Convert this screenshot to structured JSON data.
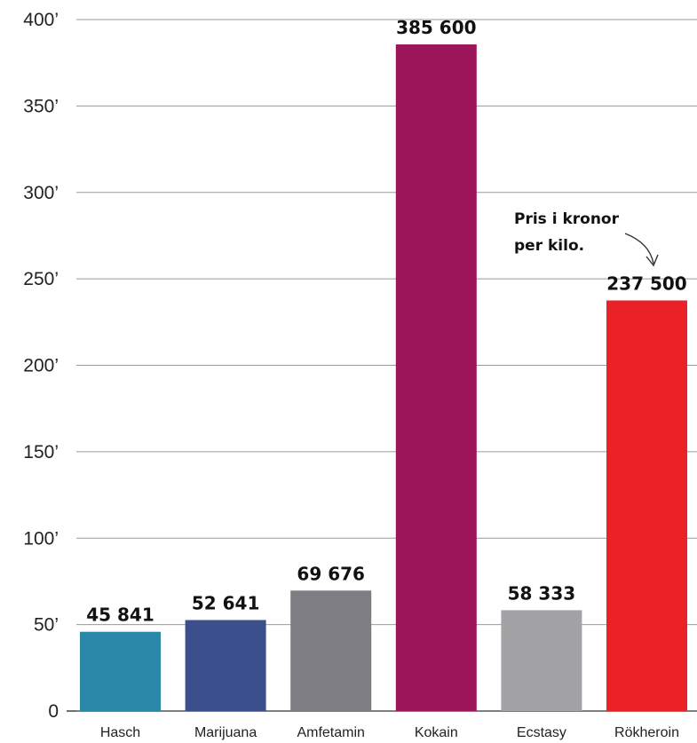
{
  "chart_data": {
    "type": "bar",
    "categories": [
      "Hasch",
      "Marijuana",
      "Amfetamin",
      "Kokain",
      "Ecstasy",
      "Rökheroin"
    ],
    "values": [
      45841,
      52641,
      69676,
      385600,
      58333,
      237500
    ],
    "value_labels": [
      "45 841",
      "52 641",
      "69 676",
      "385 600",
      "58 333",
      "237 500"
    ],
    "colors": [
      "#2a87a8",
      "#3b4f8c",
      "#7e7d83",
      "#9c1459",
      "#a3a3a6",
      "#ea2127"
    ],
    "ylim": [
      0,
      400000
    ],
    "yticks": [
      0,
      50000,
      100000,
      150000,
      200000,
      250000,
      300000,
      350000,
      400000
    ],
    "ytick_labels": [
      "0",
      "50’",
      "100’",
      "150’",
      "200’",
      "250’",
      "300’",
      "350’",
      "400’"
    ],
    "grid": true,
    "annotation": {
      "lines": [
        "Pris i kronor",
        "per kilo."
      ],
      "target_category": "Rökheroin"
    },
    "title": "",
    "xlabel": "",
    "ylabel": ""
  }
}
